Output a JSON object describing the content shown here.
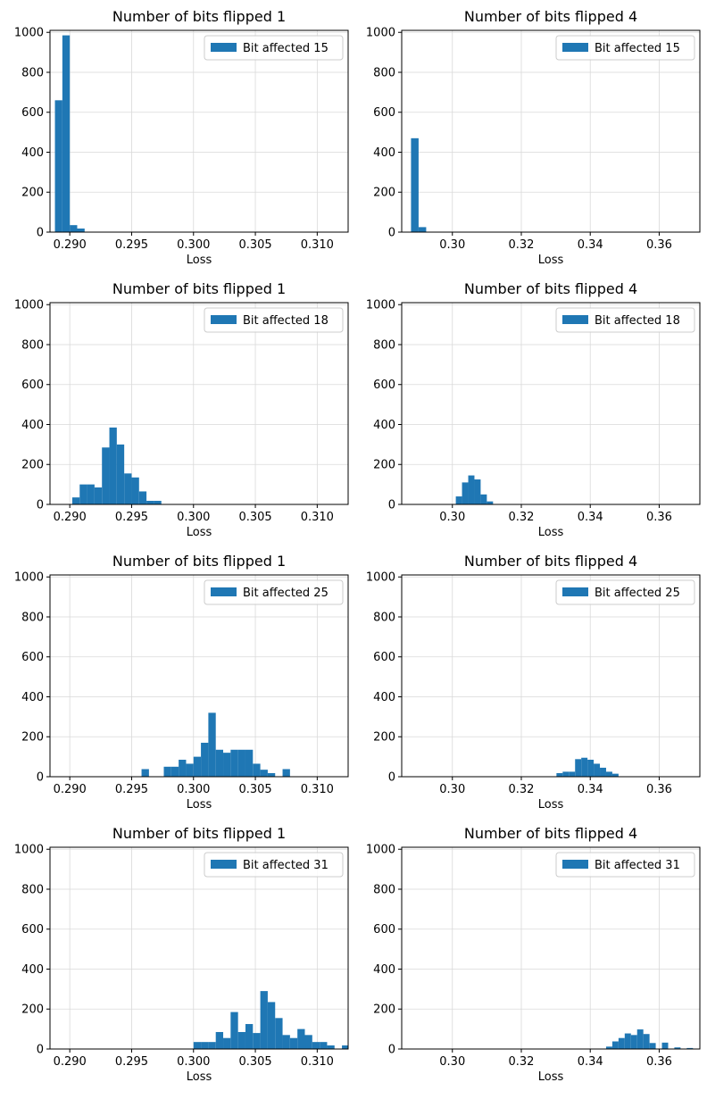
{
  "colors": {
    "bar": "#1f77b4",
    "grid": "#d9d9d9",
    "axis": "#000000",
    "legend_border": "#cccccc"
  },
  "chart_data": [
    {
      "type": "bar",
      "title": "Number of bits flipped 1",
      "xlabel": "Loss",
      "legend": "Bit affected 15",
      "legend_position": "top-right",
      "grid": true,
      "xlim": [
        0.2884,
        0.3125
      ],
      "ylim": [
        0,
        1010
      ],
      "xticks": [
        0.29,
        0.295,
        0.3,
        0.305,
        0.31
      ],
      "xtick_labels": [
        "0.290",
        "0.295",
        "0.300",
        "0.305",
        "0.310"
      ],
      "yticks": [
        0,
        200,
        400,
        600,
        800,
        1000
      ],
      "ytick_labels": [
        "0",
        "200",
        "400",
        "600",
        "800",
        "1000"
      ],
      "bin_width": 0.0006,
      "bins": [
        [
          0.2888,
          660
        ],
        [
          0.2894,
          985
        ],
        [
          0.29,
          35
        ],
        [
          0.2906,
          18
        ]
      ]
    },
    {
      "type": "bar",
      "title": "Number of bits flipped 4",
      "xlabel": "Loss",
      "legend": "Bit affected 15",
      "legend_position": "top-right",
      "grid": true,
      "xlim": [
        0.2853,
        0.3718
      ],
      "ylim": [
        0,
        1010
      ],
      "xticks": [
        0.3,
        0.32,
        0.34,
        0.36
      ],
      "xtick_labels": [
        "0.30",
        "0.32",
        "0.34",
        "0.36"
      ],
      "yticks": [
        0,
        200,
        400,
        600,
        800,
        1000
      ],
      "ytick_labels": [
        "0",
        "200",
        "400",
        "600",
        "800",
        "1000"
      ],
      "bin_width": 0.0022,
      "bins": [
        [
          0.288,
          470
        ],
        [
          0.2902,
          25
        ]
      ]
    },
    {
      "type": "bar",
      "title": "Number of bits flipped 1",
      "xlabel": "Loss",
      "legend": "Bit affected 18",
      "legend_position": "top-right",
      "grid": true,
      "xlim": [
        0.2884,
        0.3125
      ],
      "ylim": [
        0,
        1010
      ],
      "xticks": [
        0.29,
        0.295,
        0.3,
        0.305,
        0.31
      ],
      "xtick_labels": [
        "0.290",
        "0.295",
        "0.300",
        "0.305",
        "0.310"
      ],
      "yticks": [
        0,
        200,
        400,
        600,
        800,
        1000
      ],
      "ytick_labels": [
        "0",
        "200",
        "400",
        "600",
        "800",
        "1000"
      ],
      "bin_width": 0.0006,
      "bins": [
        [
          0.2902,
          35
        ],
        [
          0.2908,
          100
        ],
        [
          0.2914,
          100
        ],
        [
          0.292,
          85
        ],
        [
          0.2926,
          285
        ],
        [
          0.2932,
          385
        ],
        [
          0.2938,
          300
        ],
        [
          0.2944,
          155
        ],
        [
          0.295,
          135
        ],
        [
          0.2956,
          65
        ],
        [
          0.2962,
          18
        ],
        [
          0.2968,
          18
        ]
      ]
    },
    {
      "type": "bar",
      "title": "Number of bits flipped 4",
      "xlabel": "Loss",
      "legend": "Bit affected 18",
      "legend_position": "top-right",
      "grid": true,
      "xlim": [
        0.2853,
        0.3718
      ],
      "ylim": [
        0,
        1010
      ],
      "xticks": [
        0.3,
        0.32,
        0.34,
        0.36
      ],
      "xtick_labels": [
        "0.30",
        "0.32",
        "0.34",
        "0.36"
      ],
      "yticks": [
        0,
        200,
        400,
        600,
        800,
        1000
      ],
      "ytick_labels": [
        "0",
        "200",
        "400",
        "600",
        "800",
        "1000"
      ],
      "bin_width": 0.0018,
      "bins": [
        [
          0.301,
          40
        ],
        [
          0.3028,
          110
        ],
        [
          0.3046,
          145
        ],
        [
          0.3064,
          125
        ],
        [
          0.3082,
          50
        ],
        [
          0.31,
          15
        ]
      ]
    },
    {
      "type": "bar",
      "title": "Number of bits flipped 1",
      "xlabel": "Loss",
      "legend": "Bit affected 25",
      "legend_position": "top-right",
      "grid": true,
      "xlim": [
        0.2884,
        0.3125
      ],
      "ylim": [
        0,
        1010
      ],
      "xticks": [
        0.29,
        0.295,
        0.3,
        0.305,
        0.31
      ],
      "xtick_labels": [
        "0.290",
        "0.295",
        "0.300",
        "0.305",
        "0.310"
      ],
      "yticks": [
        0,
        200,
        400,
        600,
        800,
        1000
      ],
      "ytick_labels": [
        "0",
        "200",
        "400",
        "600",
        "800",
        "1000"
      ],
      "bin_width": 0.0006,
      "bins": [
        [
          0.2958,
          38
        ],
        [
          0.2976,
          50
        ],
        [
          0.2982,
          50
        ],
        [
          0.2988,
          85
        ],
        [
          0.2994,
          65
        ],
        [
          0.3,
          100
        ],
        [
          0.3006,
          170
        ],
        [
          0.3012,
          320
        ],
        [
          0.3018,
          135
        ],
        [
          0.3024,
          120
        ],
        [
          0.303,
          135
        ],
        [
          0.3036,
          135
        ],
        [
          0.3042,
          135
        ],
        [
          0.3048,
          65
        ],
        [
          0.3054,
          35
        ],
        [
          0.306,
          18
        ],
        [
          0.3072,
          38
        ]
      ]
    },
    {
      "type": "bar",
      "title": "Number of bits flipped 4",
      "xlabel": "Loss",
      "legend": "Bit affected 25",
      "legend_position": "top-right",
      "grid": true,
      "xlim": [
        0.2853,
        0.3718
      ],
      "ylim": [
        0,
        1010
      ],
      "xticks": [
        0.3,
        0.32,
        0.34,
        0.36
      ],
      "xtick_labels": [
        "0.30",
        "0.32",
        "0.34",
        "0.36"
      ],
      "yticks": [
        0,
        200,
        400,
        600,
        800,
        1000
      ],
      "ytick_labels": [
        "0",
        "200",
        "400",
        "600",
        "800",
        "1000"
      ],
      "bin_width": 0.0018,
      "bins": [
        [
          0.3302,
          18
        ],
        [
          0.332,
          25
        ],
        [
          0.3338,
          25
        ],
        [
          0.3356,
          88
        ],
        [
          0.3374,
          95
        ],
        [
          0.3392,
          85
        ],
        [
          0.341,
          65
        ],
        [
          0.3428,
          45
        ],
        [
          0.3446,
          25
        ],
        [
          0.3464,
          15
        ]
      ]
    },
    {
      "type": "bar",
      "title": "Number of bits flipped 1",
      "xlabel": "Loss",
      "legend": "Bit affected 31",
      "legend_position": "top-right",
      "grid": true,
      "xlim": [
        0.2884,
        0.3125
      ],
      "ylim": [
        0,
        1010
      ],
      "xticks": [
        0.29,
        0.295,
        0.3,
        0.305,
        0.31
      ],
      "xtick_labels": [
        "0.290",
        "0.295",
        "0.300",
        "0.305",
        "0.310"
      ],
      "yticks": [
        0,
        200,
        400,
        600,
        800,
        1000
      ],
      "ytick_labels": [
        "0",
        "200",
        "400",
        "600",
        "800",
        "1000"
      ],
      "bin_width": 0.0006,
      "bins": [
        [
          0.3,
          35
        ],
        [
          0.3006,
          35
        ],
        [
          0.3012,
          35
        ],
        [
          0.3018,
          85
        ],
        [
          0.3024,
          55
        ],
        [
          0.303,
          185
        ],
        [
          0.3036,
          85
        ],
        [
          0.3042,
          125
        ],
        [
          0.3048,
          80
        ],
        [
          0.3054,
          290
        ],
        [
          0.306,
          235
        ],
        [
          0.3066,
          155
        ],
        [
          0.3072,
          70
        ],
        [
          0.3078,
          55
        ],
        [
          0.3084,
          100
        ],
        [
          0.309,
          70
        ],
        [
          0.3096,
          35
        ],
        [
          0.3102,
          35
        ],
        [
          0.3108,
          18
        ],
        [
          0.312,
          18
        ],
        [
          0.3126,
          18
        ]
      ]
    },
    {
      "type": "bar",
      "title": "Number of bits flipped 4",
      "xlabel": "Loss",
      "legend": "Bit affected 31",
      "legend_position": "top-right",
      "grid": true,
      "xlim": [
        0.2853,
        0.3718
      ],
      "ylim": [
        0,
        1010
      ],
      "xticks": [
        0.3,
        0.32,
        0.34,
        0.36
      ],
      "xtick_labels": [
        "0.30",
        "0.32",
        "0.34",
        "0.36"
      ],
      "yticks": [
        0,
        200,
        400,
        600,
        800,
        1000
      ],
      "ytick_labels": [
        "0",
        "200",
        "400",
        "600",
        "800",
        "1000"
      ],
      "bin_width": 0.0018,
      "bins": [
        [
          0.3446,
          12
        ],
        [
          0.3464,
          38
        ],
        [
          0.3482,
          55
        ],
        [
          0.35,
          78
        ],
        [
          0.3518,
          70
        ],
        [
          0.3536,
          98
        ],
        [
          0.3554,
          75
        ],
        [
          0.3572,
          30
        ],
        [
          0.3608,
          32
        ],
        [
          0.3644,
          8
        ],
        [
          0.368,
          5
        ]
      ]
    }
  ]
}
